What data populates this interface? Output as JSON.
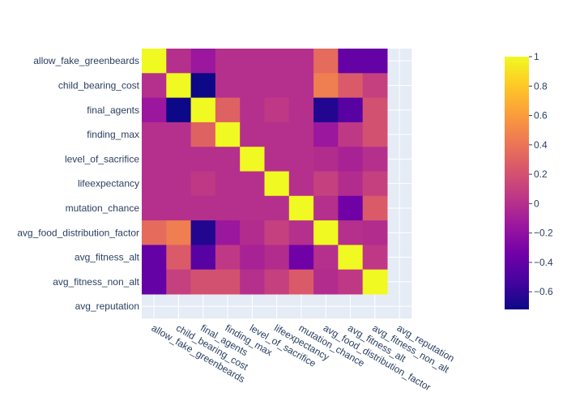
{
  "chart_data": {
    "type": "heatmap",
    "title": "",
    "xlabel": "",
    "ylabel": "",
    "labels": [
      "allow_fake_greenbeards",
      "child_bearing_cost",
      "final_agents",
      "finding_max",
      "level_of_sacrifice",
      "lifeexpectancy",
      "mutation_chance",
      "avg_food_distribution_factor",
      "avg_fitness_alt",
      "avg_fitness_non_alt",
      "avg_reputation"
    ],
    "z": [
      [
        1.0,
        0.0,
        -0.15,
        0.0,
        0.0,
        0.0,
        0.0,
        0.35,
        -0.4,
        -0.4,
        null
      ],
      [
        0.0,
        1.0,
        -0.72,
        0.0,
        0.0,
        0.0,
        0.0,
        0.45,
        0.25,
        0.1,
        null
      ],
      [
        -0.15,
        -0.72,
        1.0,
        0.3,
        0.0,
        0.05,
        0.0,
        -0.65,
        -0.45,
        0.2,
        null
      ],
      [
        0.0,
        0.0,
        0.3,
        1.0,
        0.0,
        0.0,
        0.0,
        -0.15,
        0.05,
        0.2,
        null
      ],
      [
        0.0,
        0.0,
        0.0,
        0.0,
        1.0,
        0.0,
        0.0,
        -0.02,
        -0.08,
        0.0,
        null
      ],
      [
        0.0,
        0.0,
        0.05,
        0.0,
        0.0,
        1.0,
        0.0,
        0.1,
        -0.02,
        0.1,
        null
      ],
      [
        0.0,
        0.0,
        0.0,
        0.0,
        0.0,
        0.0,
        1.0,
        0.0,
        -0.35,
        0.25,
        null
      ],
      [
        0.35,
        0.45,
        -0.65,
        -0.15,
        -0.02,
        0.1,
        0.0,
        1.0,
        0.0,
        -0.02,
        null
      ],
      [
        -0.4,
        0.25,
        -0.45,
        0.05,
        -0.08,
        -0.02,
        -0.35,
        0.0,
        1.0,
        0.05,
        null
      ],
      [
        -0.4,
        0.1,
        0.2,
        0.2,
        0.0,
        0.1,
        0.25,
        -0.02,
        0.05,
        1.0,
        null
      ],
      [
        null,
        null,
        null,
        null,
        null,
        null,
        null,
        null,
        null,
        null,
        null
      ]
    ],
    "zrange": [
      -0.72,
      1.0
    ],
    "colorscale": [
      "#0d0887",
      "#46039f",
      "#7201a8",
      "#9c179e",
      "#bd3786",
      "#d8576b",
      "#ed7953",
      "#fb9f3a",
      "#fdca26",
      "#f0f921"
    ],
    "colorbar": {
      "ticks": [
        1,
        0.8,
        0.6,
        0.4,
        0.2,
        0,
        -0.2,
        -0.4,
        -0.6
      ],
      "tick_labels": [
        "1",
        "0.8",
        "0.6",
        "0.4",
        "0.2",
        "0",
        "−0.2",
        "−0.4",
        "−0.6"
      ]
    },
    "plot_background": "#e5ecf6",
    "gridlines": true
  }
}
